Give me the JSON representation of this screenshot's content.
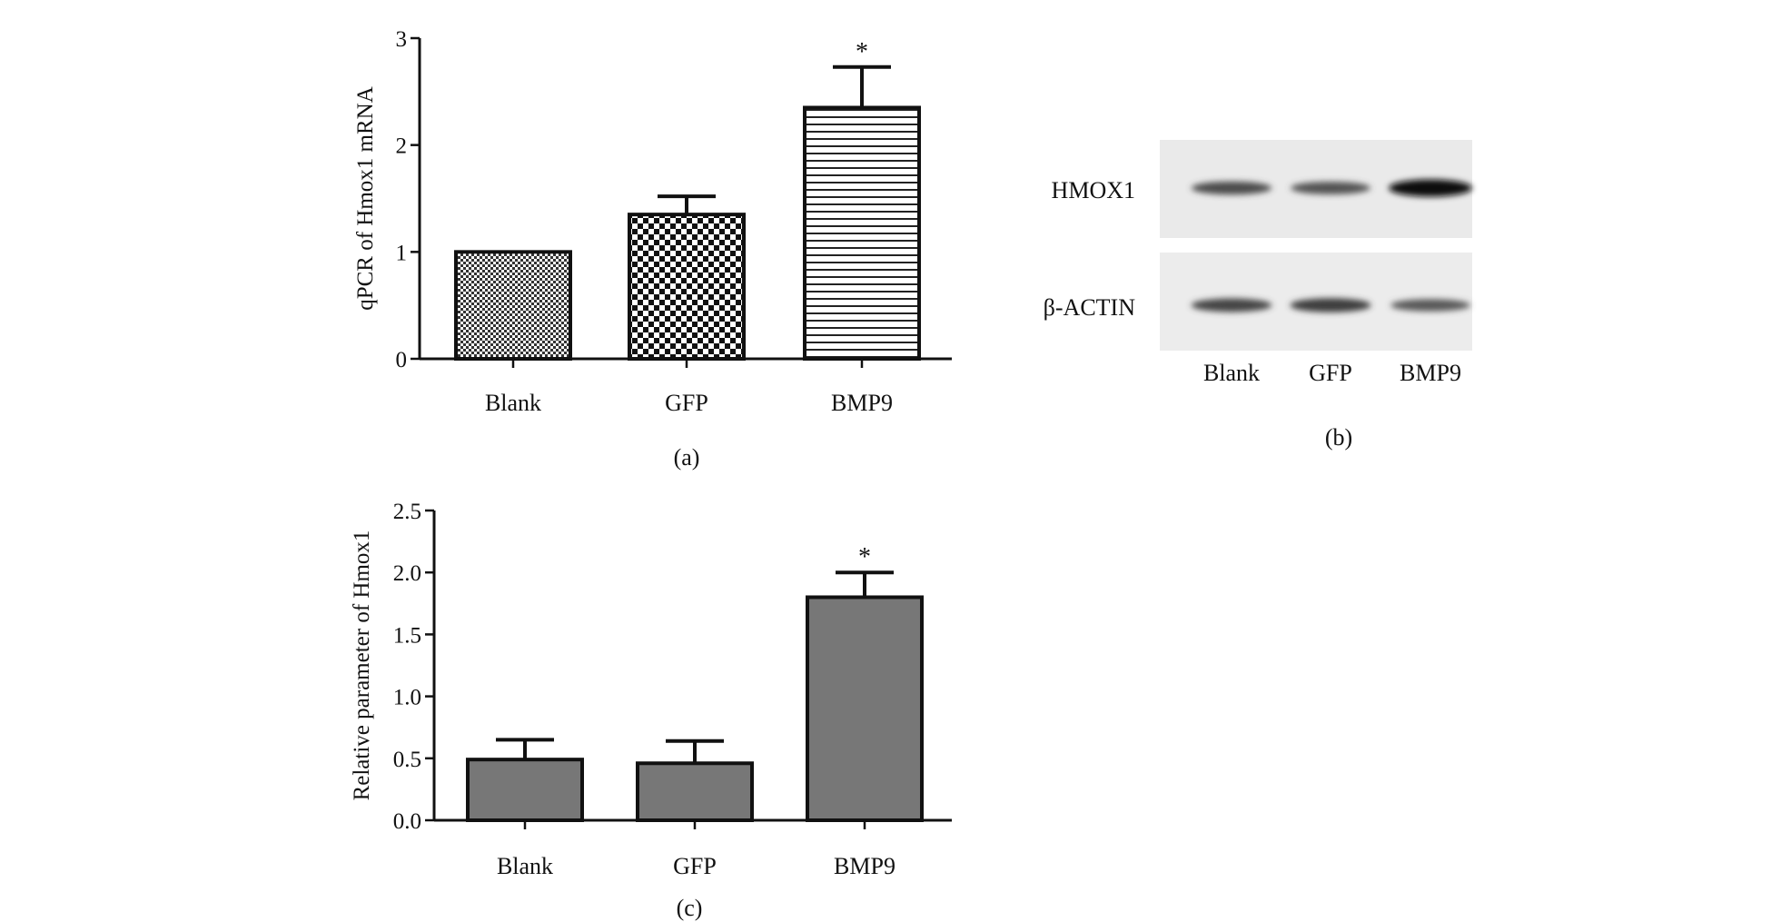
{
  "chart_data": [
    {
      "type": "bar",
      "panel_label": "(a)",
      "ylabel": "qPCR of Hmox1 mRNA",
      "categories": [
        "Blank",
        "GFP",
        "BMP9"
      ],
      "values": [
        1.0,
        1.35,
        2.35
      ],
      "errors": [
        0.0,
        0.17,
        0.38
      ],
      "significance": [
        "",
        "",
        "*"
      ],
      "ylim": [
        0,
        3
      ],
      "yticks": [
        "0",
        "1",
        "2",
        "3"
      ],
      "patterns": [
        "fine-check",
        "coarse-check",
        "horizontal-stripes"
      ]
    },
    {
      "type": "blot",
      "panel_label": "(b)",
      "rows": [
        "HMOX1",
        "β-ACTIN"
      ],
      "lanes": [
        "Blank",
        "GFP",
        "BMP9"
      ],
      "band_intensity": [
        [
          0.55,
          0.5,
          1.0
        ],
        [
          0.6,
          0.65,
          0.45
        ]
      ]
    },
    {
      "type": "bar",
      "panel_label": "(c)",
      "ylabel": "Relative parameter of Hmox1",
      "categories": [
        "Blank",
        "GFP",
        "BMP9"
      ],
      "values": [
        0.49,
        0.46,
        1.8
      ],
      "errors": [
        0.16,
        0.18,
        0.2
      ],
      "significance": [
        "",
        "",
        "*"
      ],
      "ylim": [
        0,
        2.5
      ],
      "yticks": [
        "0.0",
        "0.5",
        "1.0",
        "1.5",
        "2.0",
        "2.5"
      ],
      "color": "#777777"
    }
  ]
}
